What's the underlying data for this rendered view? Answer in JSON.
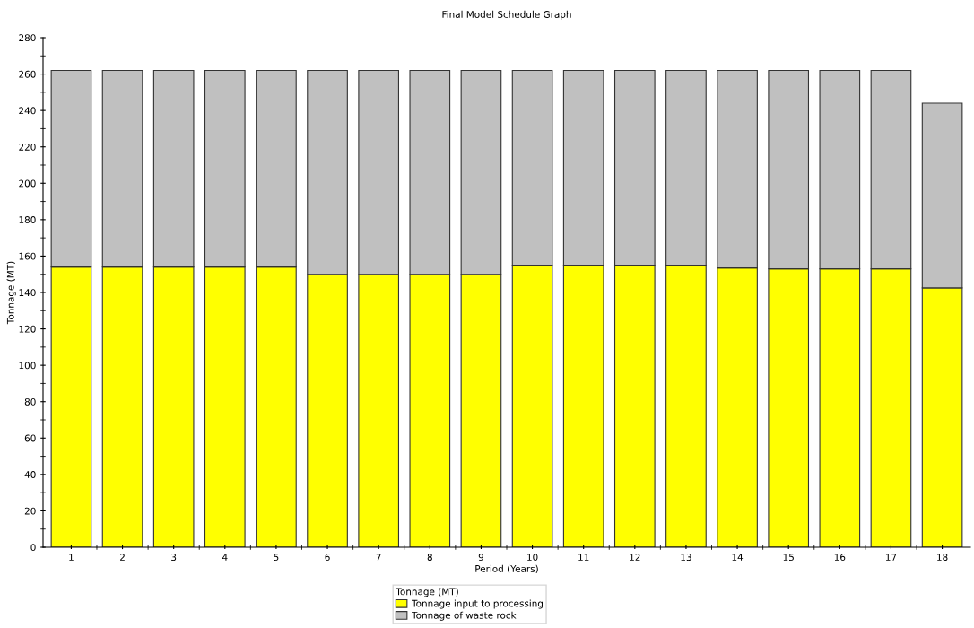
{
  "chart_data": {
    "type": "bar",
    "title": "Final Model Schedule Graph",
    "xlabel": "Period (Years)",
    "ylabel": "Tonnage (MT)",
    "legend_title": "Tonnage (MT)",
    "categories": [
      "1",
      "2",
      "3",
      "4",
      "5",
      "6",
      "7",
      "8",
      "9",
      "10",
      "11",
      "12",
      "13",
      "14",
      "15",
      "16",
      "17",
      "18"
    ],
    "stacked": true,
    "series": [
      {
        "name": "Tonnage input to processing",
        "color": "#ffff00",
        "values": [
          154,
          154,
          154,
          154,
          154,
          150,
          150,
          150,
          150,
          155,
          155,
          155,
          155,
          153.5,
          153,
          153,
          153,
          142.5
        ]
      },
      {
        "name": "Tonnage of waste rock",
        "color": "#c0c0c0",
        "values": [
          108,
          108,
          108,
          108,
          108,
          112,
          112,
          112,
          112,
          107,
          107,
          107,
          107,
          108.5,
          109,
          109,
          109,
          101.5
        ]
      }
    ],
    "ylim": [
      0,
      280
    ],
    "yticks": [
      0,
      20,
      40,
      60,
      80,
      100,
      120,
      140,
      160,
      180,
      200,
      220,
      240,
      260,
      280
    ],
    "grid": false,
    "legend": "bottom"
  }
}
